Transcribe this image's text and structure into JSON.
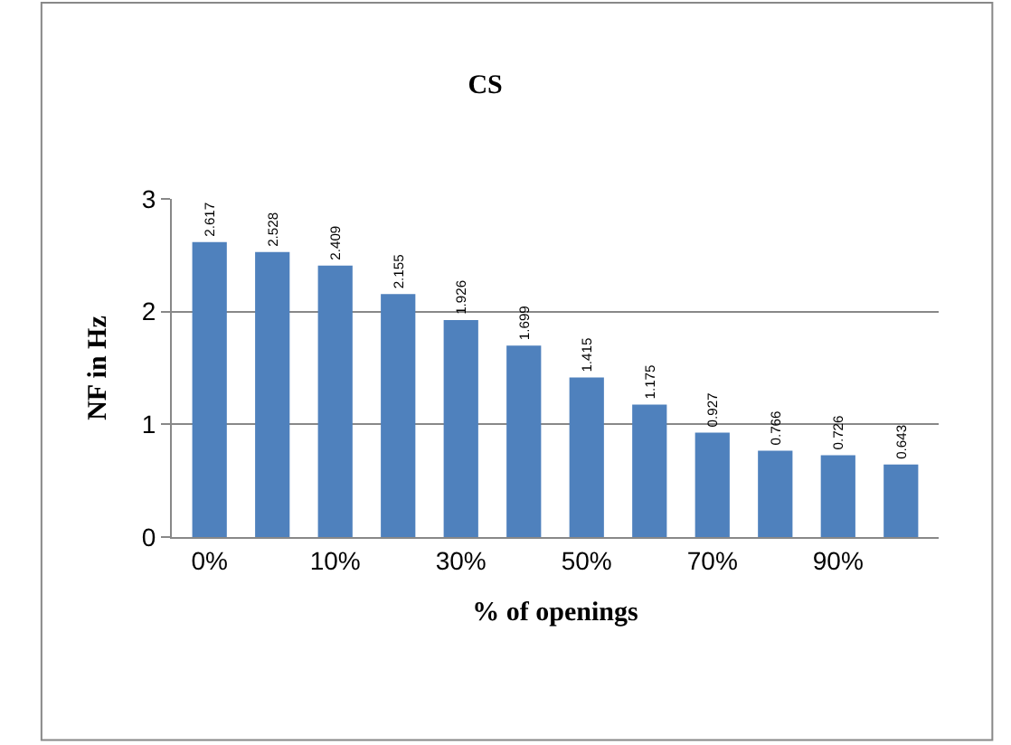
{
  "chart_data": {
    "type": "bar",
    "title": "CS",
    "xlabel": "% of openings",
    "ylabel": "NF in Hz",
    "categories": [
      "0%",
      null,
      "10%",
      null,
      "30%",
      null,
      "50%",
      null,
      "70%",
      null,
      "90%",
      null
    ],
    "values": [
      2.617,
      2.528,
      2.409,
      2.155,
      1.926,
      1.699,
      1.415,
      1.175,
      0.927,
      0.766,
      0.726,
      0.643
    ],
    "color": "#4f81bd",
    "ylim": [
      0,
      3
    ],
    "yticks": [
      0,
      1,
      2,
      3
    ],
    "grid": "y",
    "data_labels": true,
    "legend": false
  }
}
